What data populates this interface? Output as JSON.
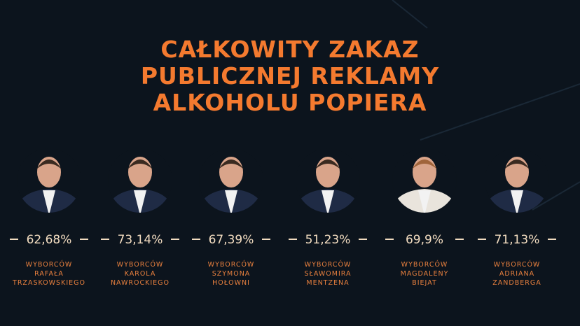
{
  "title": [
    "CAŁKOWITY ZAKAZ",
    "PUBLICZNEJ REKLAMY",
    "ALKOHOLU POPIERA"
  ],
  "items": [
    {
      "value": "62,68%",
      "label": [
        "WYBORCÓW",
        "RAFAŁA",
        "TRZASKOWSKIEGO"
      ]
    },
    {
      "value": "73,14%",
      "label": [
        "WYBORCÓW",
        "KAROLA",
        "NAWROCKIEGO"
      ]
    },
    {
      "value": "67,39%",
      "label": [
        "WYBORCÓW",
        "SZYMONA",
        "HOŁOWNI"
      ]
    },
    {
      "value": "51,23%",
      "label": [
        "WYBORCÓW",
        "SŁAWOMIRA",
        "MENTZENA"
      ]
    },
    {
      "value": "69,9%",
      "label": [
        "WYBORCÓW",
        "MAGDALENY",
        "BIEJAT"
      ]
    },
    {
      "value": "71,13%",
      "label": [
        "WYBORCÓW",
        "ADRIANA",
        "ZANDBERGA"
      ]
    }
  ]
}
